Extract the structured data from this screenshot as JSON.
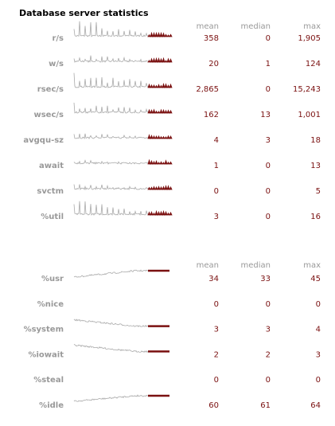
{
  "title": "Database server statistics",
  "sections": [
    {
      "headers": [
        "mean",
        "median",
        "max"
      ],
      "rows": [
        {
          "label": "r/s",
          "mean": "358",
          "median": "0",
          "max": "1,905"
        },
        {
          "label": "w/s",
          "mean": "20",
          "median": "1",
          "max": "124"
        },
        {
          "label": "rsec/s",
          "mean": "2,865",
          "median": "0",
          "max": "15,243"
        },
        {
          "label": "wsec/s",
          "mean": "162",
          "median": "13",
          "max": "1,001"
        },
        {
          "label": "avgqu-sz",
          "mean": "4",
          "median": "3",
          "max": "18"
        },
        {
          "label": "await",
          "mean": "1",
          "median": "0",
          "max": "13"
        },
        {
          "label": "svctm",
          "mean": "0",
          "median": "0",
          "max": "5"
        },
        {
          "label": "%util",
          "mean": "3",
          "median": "0",
          "max": "16"
        }
      ]
    },
    {
      "headers": [
        "mean",
        "median",
        "max"
      ],
      "rows": [
        {
          "label": "%usr",
          "mean": "34",
          "median": "33",
          "max": "45"
        },
        {
          "label": "%nice",
          "mean": "0",
          "median": "0",
          "max": "0"
        },
        {
          "label": "%system",
          "mean": "3",
          "median": "3",
          "max": "4"
        },
        {
          "label": "%iowait",
          "mean": "2",
          "median": "2",
          "max": "3"
        },
        {
          "label": "%steal",
          "mean": "0",
          "median": "0",
          "max": "0"
        },
        {
          "label": "%idle",
          "mean": "60",
          "median": "61",
          "max": "64"
        }
      ]
    }
  ]
}
